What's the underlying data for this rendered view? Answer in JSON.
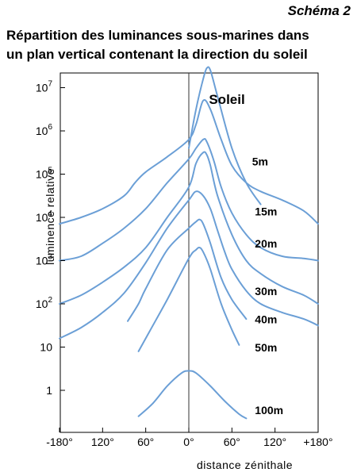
{
  "header": {
    "schema_label": "Schéma 2",
    "title_line1": "Répartition des luminances sous-marines dans",
    "title_line2": "un plan vertical contenant la direction du soleil"
  },
  "chart_data": {
    "type": "line",
    "title": "Répartition des luminances sous-marines dans un plan vertical contenant la direction du soleil",
    "xlabel": "distance zénithale",
    "ylabel": "luminence relative",
    "xlim": [
      -180,
      180
    ],
    "ylim_log10": [
      -0.6,
      7.4
    ],
    "y_scale": "log",
    "x_ticks": [
      -180,
      -120,
      -60,
      0,
      60,
      120,
      180
    ],
    "x_tick_labels": [
      "-180°",
      "120°",
      "60°",
      "0°",
      "60°",
      "120°",
      "+180°"
    ],
    "y_ticks": [
      1,
      10,
      100,
      1000,
      10000,
      100000,
      1000000,
      10000000
    ],
    "y_tick_labels": [
      {
        "base": "1",
        "exp": ""
      },
      {
        "base": "10",
        "exp": ""
      },
      {
        "base": "10",
        "exp": "2"
      },
      {
        "base": "10",
        "exp": "3"
      },
      {
        "base": "10",
        "exp": "4"
      },
      {
        "base": "10",
        "exp": "5"
      },
      {
        "base": "10",
        "exp": "6"
      },
      {
        "base": "10",
        "exp": "7"
      }
    ],
    "grid": false,
    "vertical_line_at": 0,
    "line_color": "#6b9fd6",
    "annotation": "Soleil",
    "series": [
      {
        "name": "Soleil",
        "x": [
          0,
          10,
          20,
          25,
          30,
          40,
          60,
          80,
          100
        ],
        "log10_y": [
          5.6,
          6.5,
          7.2,
          7.45,
          7.4,
          6.8,
          5.6,
          4.8,
          4.3
        ]
      },
      {
        "name": "5m",
        "x": [
          -180,
          -150,
          -120,
          -90,
          -75,
          -60,
          -30,
          0,
          10,
          20,
          30,
          45,
          60,
          80,
          100,
          130,
          160,
          180
        ],
        "log10_y": [
          3.85,
          4.0,
          4.2,
          4.5,
          4.8,
          5.05,
          5.4,
          5.8,
          6.15,
          6.7,
          6.5,
          5.8,
          5.2,
          4.8,
          4.6,
          4.4,
          4.15,
          3.85
        ]
      },
      {
        "name": "15m",
        "x": [
          -180,
          -150,
          -120,
          -90,
          -60,
          -30,
          0,
          10,
          20,
          25,
          35,
          45,
          60,
          80,
          100,
          130,
          160,
          180
        ],
        "log10_y": [
          3.0,
          3.1,
          3.4,
          3.75,
          4.2,
          4.8,
          5.35,
          5.6,
          5.8,
          5.75,
          5.3,
          4.7,
          4.1,
          3.6,
          3.3,
          3.1,
          3.05,
          3.0
        ]
      },
      {
        "name": "20m",
        "x": [
          -180,
          -150,
          -120,
          -90,
          -60,
          -30,
          0,
          10,
          20,
          25,
          30,
          40,
          60,
          80,
          100,
          130,
          160,
          180
        ],
        "log10_y": [
          2.0,
          2.2,
          2.5,
          2.85,
          3.3,
          4.0,
          4.7,
          5.25,
          5.5,
          5.45,
          5.2,
          4.5,
          3.6,
          3.0,
          2.7,
          2.4,
          2.2,
          2.0
        ]
      },
      {
        "name": "30m",
        "x": [
          -180,
          -150,
          -120,
          -90,
          -60,
          -30,
          0,
          10,
          20,
          30,
          40,
          50,
          60,
          80,
          100,
          130,
          160,
          180
        ],
        "log10_y": [
          1.2,
          1.45,
          1.8,
          2.25,
          2.95,
          3.75,
          4.4,
          4.6,
          4.5,
          4.2,
          3.7,
          3.2,
          2.8,
          2.3,
          2.0,
          1.8,
          1.65,
          1.5
        ]
      },
      {
        "name": "40m",
        "x": [
          -85,
          -70,
          -60,
          -30,
          0,
          10,
          15,
          20,
          30,
          45,
          60,
          80
        ],
        "log10_y": [
          1.6,
          2.0,
          2.35,
          3.25,
          3.75,
          3.9,
          3.95,
          3.85,
          3.4,
          2.6,
          2.1,
          1.65
        ]
      },
      {
        "name": "50m",
        "x": [
          -70,
          -55,
          -30,
          0,
          10,
          15,
          20,
          30,
          45,
          60,
          70
        ],
        "log10_y": [
          0.9,
          1.35,
          2.1,
          3.05,
          3.25,
          3.3,
          3.2,
          2.8,
          2.0,
          1.4,
          1.05
        ]
      },
      {
        "name": "100m",
        "x": [
          -70,
          -50,
          -30,
          -10,
          0,
          10,
          30,
          50,
          70,
          80
        ],
        "log10_y": [
          -0.6,
          -0.3,
          0.1,
          0.4,
          0.45,
          0.4,
          0.1,
          -0.25,
          -0.55,
          -0.65
        ]
      }
    ],
    "series_label_positions": [
      {
        "name": "5m",
        "x": 88,
        "log10_y": 5.2
      },
      {
        "name": "15m",
        "x": 92,
        "log10_y": 4.05
      },
      {
        "name": "20m",
        "x": 92,
        "log10_y": 3.3
      },
      {
        "name": "30m",
        "x": 92,
        "log10_y": 2.2
      },
      {
        "name": "40m",
        "x": 92,
        "log10_y": 1.55
      },
      {
        "name": "50m",
        "x": 92,
        "log10_y": 0.9
      },
      {
        "name": "100m",
        "x": 92,
        "log10_y": -0.55
      }
    ]
  }
}
